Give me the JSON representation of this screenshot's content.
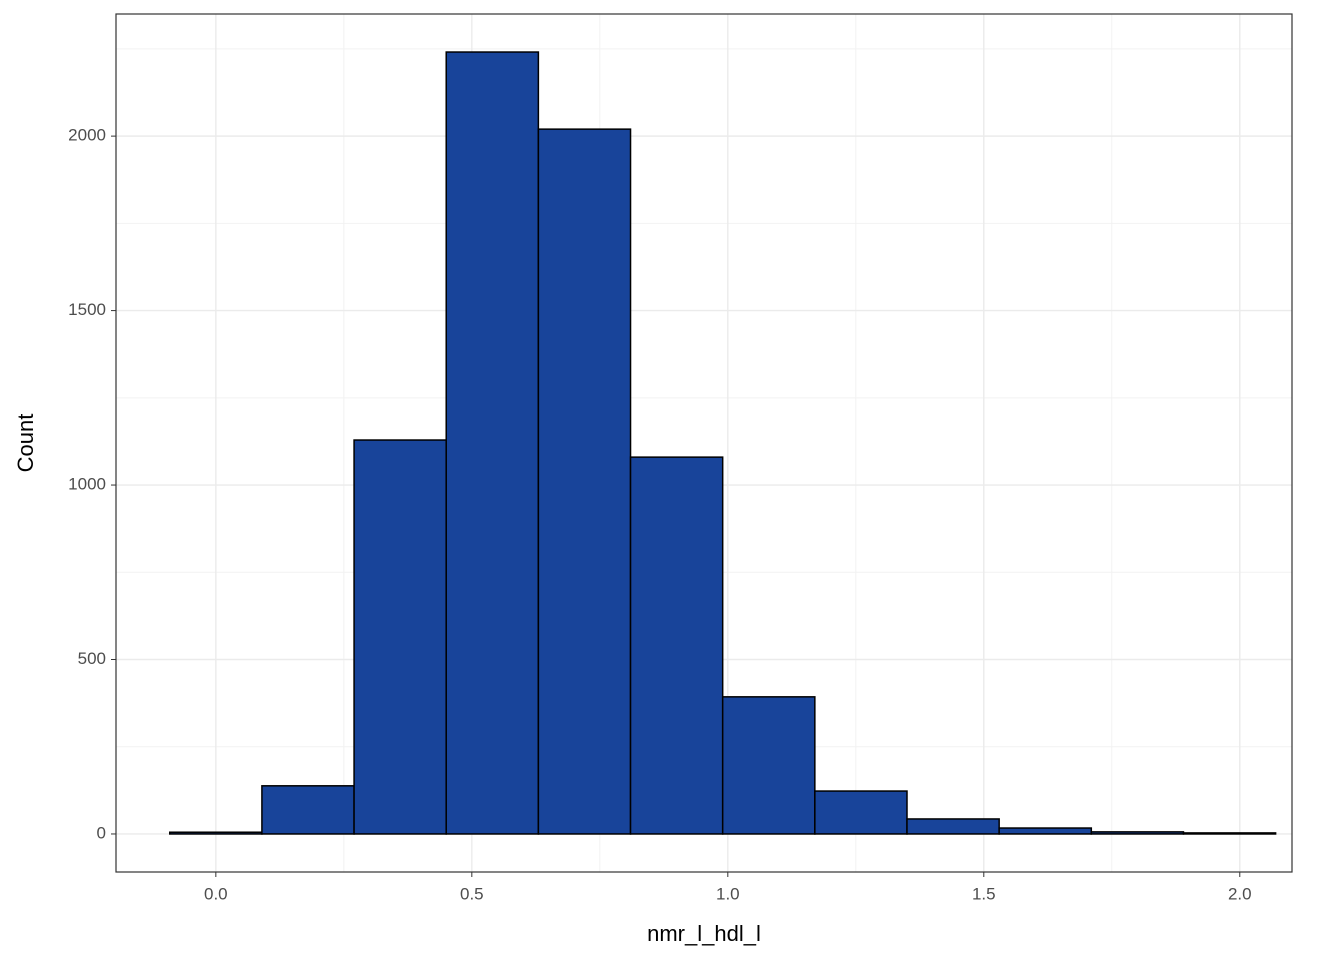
{
  "chart_data": {
    "type": "histogram",
    "x_label": "nmr_l_hdl_l",
    "y_label": "Count",
    "bins": [
      -0.09,
      0.09,
      0.27,
      0.45,
      0.63,
      0.81,
      0.99,
      1.17,
      1.35,
      1.53,
      1.71,
      1.89,
      2.07
    ],
    "values": [
      5,
      138,
      1129,
      2241,
      2020,
      1080,
      393,
      123,
      43,
      17,
      6,
      3
    ],
    "color": "#18449a",
    "xlim": [
      -0.195,
      2.102
    ],
    "ylim": [
      -109,
      2350
    ],
    "xticks": [
      {
        "value": 0,
        "label": "0.0"
      },
      0.5,
      {
        "value": 1,
        "label": "1.0"
      },
      1.5,
      {
        "value": 2,
        "label": "2.0"
      }
    ],
    "yticks": [
      0,
      500,
      1000,
      1500,
      2000
    ],
    "grid": true
  }
}
